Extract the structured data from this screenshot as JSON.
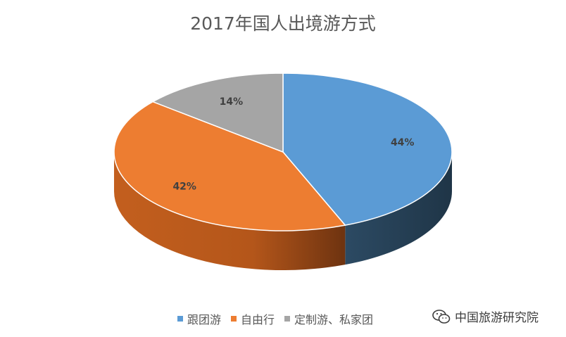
{
  "chart_data": {
    "type": "pie",
    "title": "2017年国人出境游方式",
    "slices": [
      {
        "label": "跟团游",
        "value": 44,
        "display": "44%",
        "color": "#5b9bd5"
      },
      {
        "label": "自由行",
        "value": 42,
        "display": "42%",
        "color": "#ed7d31"
      },
      {
        "label": "定制游、私家团",
        "value": 14,
        "display": "14%",
        "color": "#a5a5a5"
      }
    ],
    "style": "3d",
    "legend_position": "bottom"
  },
  "watermark": {
    "text": "中国旅游研究院",
    "icon": "wechat-icon"
  }
}
